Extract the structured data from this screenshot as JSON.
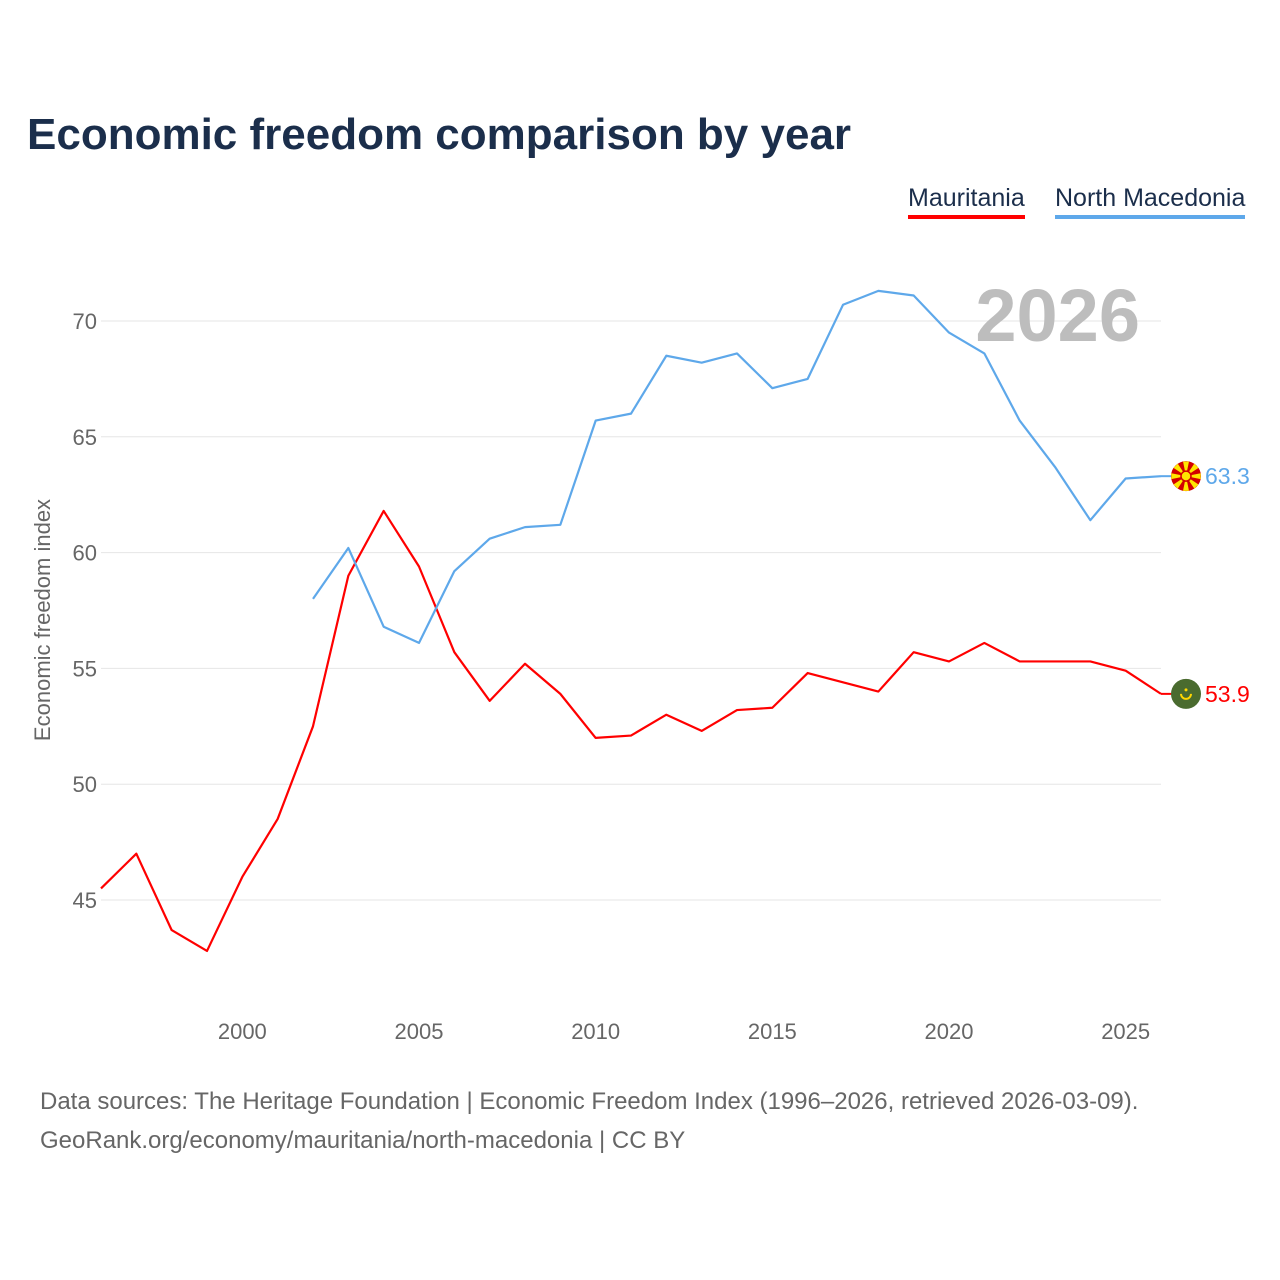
{
  "chart_data": {
    "type": "line",
    "title": "Economic freedom comparison by year",
    "xlabel": "",
    "ylabel": "Economic freedom index",
    "xlim": [
      1996,
      2026
    ],
    "ylim": [
      40,
      73
    ],
    "grid": true,
    "legend_placement": "top-right",
    "x_ticks": [
      2000,
      2005,
      2010,
      2015,
      2020,
      2025
    ],
    "y_ticks": [
      45,
      50,
      55,
      60,
      65,
      70
    ],
    "year_label": "2026",
    "series": [
      {
        "name": "Mauritania",
        "color": "#ff0000",
        "end_label": "53.9",
        "flag": "mauritania-flag",
        "x": [
          1996,
          1997,
          1998,
          1999,
          2000,
          2001,
          2002,
          2003,
          2004,
          2005,
          2006,
          2007,
          2008,
          2009,
          2010,
          2011,
          2012,
          2013,
          2014,
          2015,
          2016,
          2017,
          2018,
          2019,
          2020,
          2021,
          2022,
          2023,
          2024,
          2025,
          2026
        ],
        "values": [
          45.5,
          47.0,
          43.7,
          42.8,
          46.0,
          48.5,
          52.5,
          59.0,
          61.8,
          59.4,
          55.7,
          53.6,
          55.2,
          53.9,
          52.0,
          52.1,
          53.0,
          52.3,
          53.2,
          53.3,
          54.8,
          54.4,
          54.0,
          55.7,
          55.3,
          56.1,
          55.3,
          55.3,
          55.3,
          54.9,
          53.9
        ]
      },
      {
        "name": "North Macedonia",
        "color": "#5ea8ea",
        "end_label": "63.3",
        "flag": "north-macedonia-flag",
        "x": [
          2002,
          2003,
          2004,
          2005,
          2006,
          2007,
          2008,
          2009,
          2010,
          2011,
          2012,
          2013,
          2014,
          2015,
          2016,
          2017,
          2018,
          2019,
          2020,
          2021,
          2022,
          2023,
          2024,
          2025,
          2026
        ],
        "values": [
          58.0,
          60.2,
          56.8,
          56.1,
          59.2,
          60.6,
          61.1,
          61.2,
          65.7,
          66.0,
          68.5,
          68.2,
          68.6,
          67.1,
          67.5,
          70.7,
          71.3,
          71.1,
          69.5,
          68.6,
          65.7,
          63.7,
          61.4,
          63.2,
          63.3
        ]
      }
    ]
  },
  "footer": {
    "line1": "Data sources: The Heritage Foundation | Economic Freedom Index (1996–2026, retrieved 2026-03-09).",
    "line2": "GeoRank.org/economy/mauritania/north-macedonia | CC BY"
  }
}
